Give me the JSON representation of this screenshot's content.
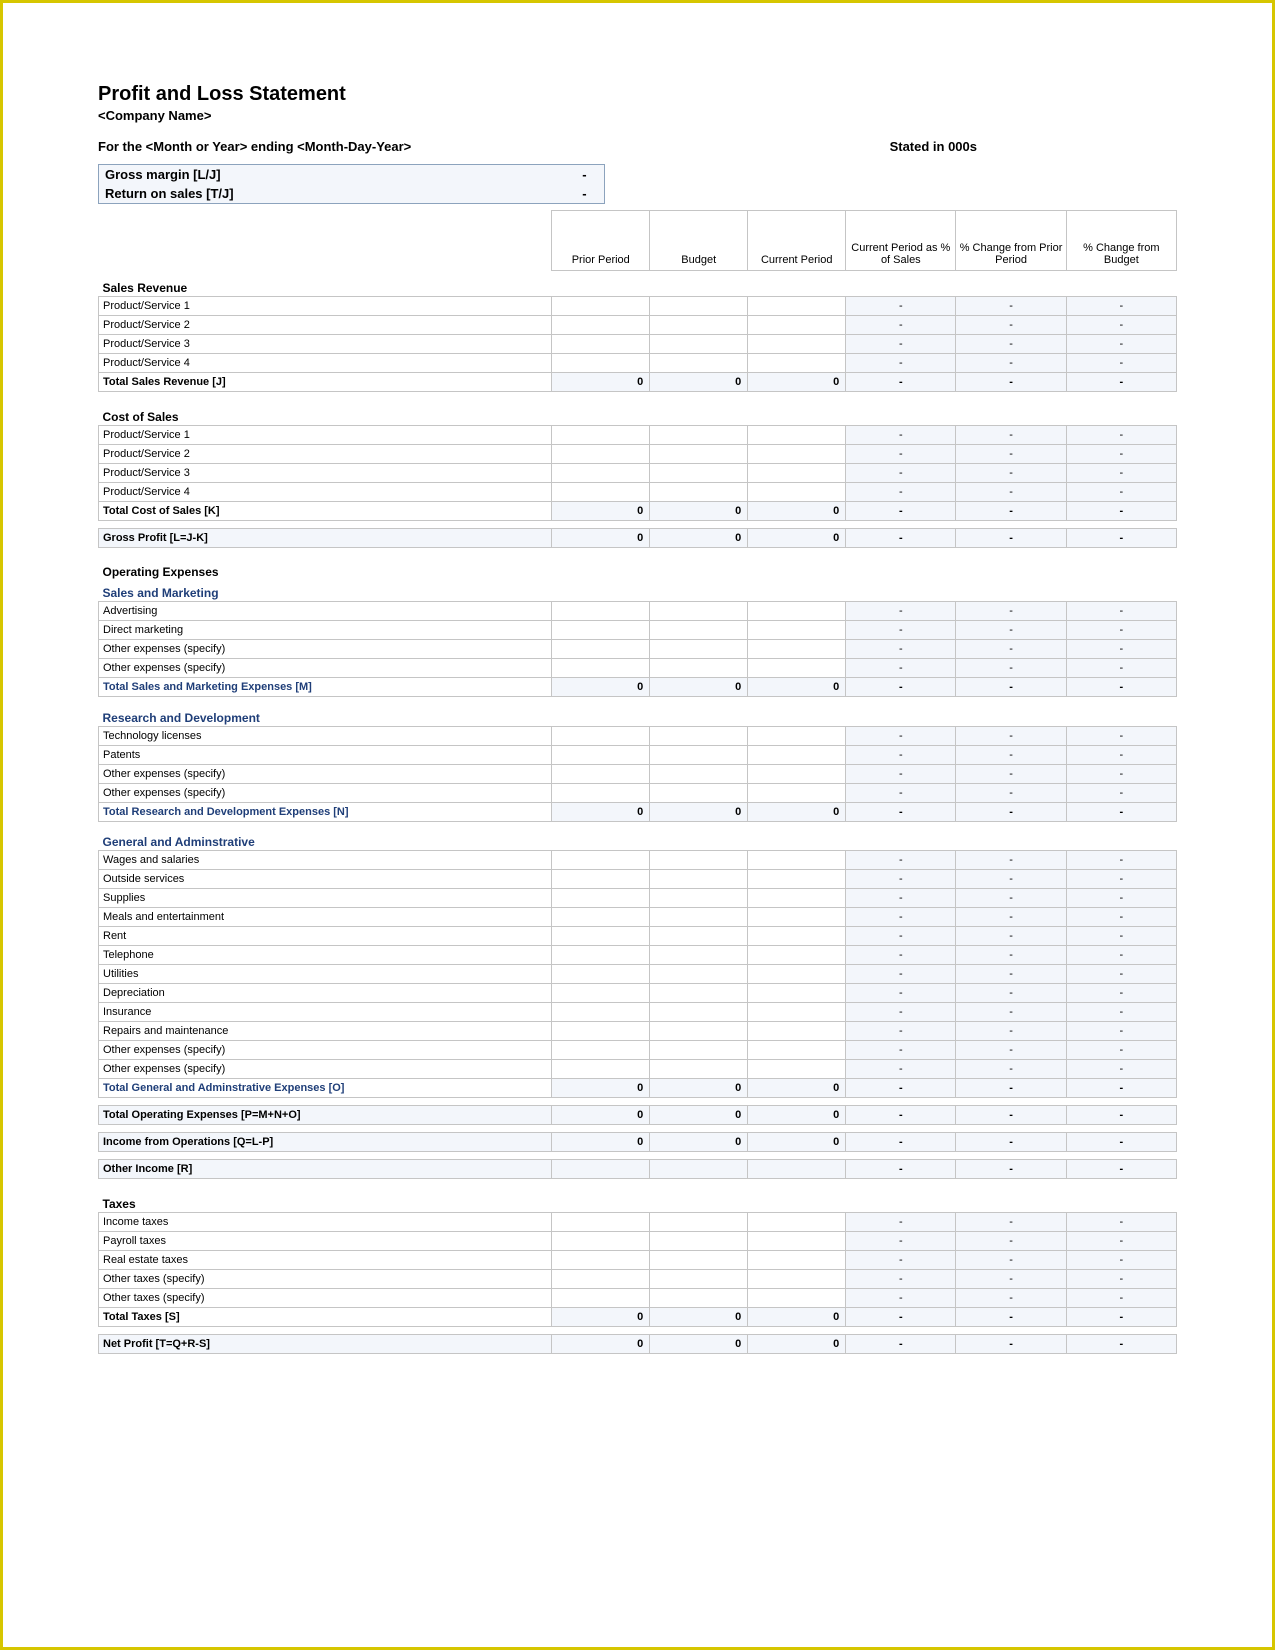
{
  "header": {
    "title": "Profit and Loss Statement",
    "company": "<Company Name>",
    "period_line": "For the <Month or Year> ending <Month-Day-Year>",
    "stated": "Stated in 000s"
  },
  "metrics": {
    "gross_margin_label": "Gross margin  [L/J]",
    "gross_margin_value": "-",
    "return_on_sales_label": "Return on sales  [T/J]",
    "return_on_sales_value": "-"
  },
  "columns": {
    "prior": "Prior Period",
    "budget": "Budget",
    "current": "Current Period",
    "pct_sales": "Current Period as % of Sales",
    "chg_prior": "% Change from Prior Period",
    "chg_budget": "% Change from Budget"
  },
  "colors": {
    "border": "#c5c5c5",
    "shade": "#f3f6fb",
    "blue_text": "#1f3e78",
    "page_border": "#d6c600"
  },
  "sections": [
    {
      "title": "Sales Revenue",
      "style": "section",
      "rows": [
        {
          "label": "Product/Service 1",
          "pct": [
            "-",
            "-",
            "-"
          ]
        },
        {
          "label": "Product/Service 2",
          "pct": [
            "-",
            "-",
            "-"
          ]
        },
        {
          "label": "Product/Service 3",
          "pct": [
            "-",
            "-",
            "-"
          ]
        },
        {
          "label": "Product/Service 4",
          "pct": [
            "-",
            "-",
            "-"
          ]
        }
      ],
      "total": {
        "label": "Total Sales Revenue  [J]",
        "nums": [
          "0",
          "0",
          "0"
        ],
        "pct": [
          "-",
          "-",
          "-"
        ],
        "style": "total"
      }
    },
    {
      "title": "Cost of Sales",
      "style": "section",
      "rows": [
        {
          "label": "Product/Service 1",
          "pct": [
            "-",
            "-",
            "-"
          ]
        },
        {
          "label": "Product/Service 2",
          "pct": [
            "-",
            "-",
            "-"
          ]
        },
        {
          "label": "Product/Service 3",
          "pct": [
            "-",
            "-",
            "-"
          ]
        },
        {
          "label": "Product/Service 4",
          "pct": [
            "-",
            "-",
            "-"
          ]
        }
      ],
      "total": {
        "label": "Total Cost of Sales  [K]",
        "nums": [
          "0",
          "0",
          "0"
        ],
        "pct": [
          "-",
          "-",
          "-"
        ],
        "style": "total"
      }
    }
  ],
  "gross_profit": {
    "label": "Gross Profit  [L=J-K]",
    "nums": [
      "0",
      "0",
      "0"
    ],
    "pct": [
      "-",
      "-",
      "-"
    ]
  },
  "opex_title": "Operating Expenses",
  "opex": [
    {
      "title": "Sales and Marketing",
      "style": "sub",
      "rows": [
        {
          "label": "Advertising",
          "pct": [
            "-",
            "-",
            "-"
          ]
        },
        {
          "label": "Direct marketing",
          "pct": [
            "-",
            "-",
            "-"
          ]
        },
        {
          "label": "Other expenses (specify)",
          "pct": [
            "-",
            "-",
            "-"
          ]
        },
        {
          "label": "Other expenses (specify)",
          "pct": [
            "-",
            "-",
            "-"
          ]
        }
      ],
      "total": {
        "label": "Total Sales and Marketing Expenses  [M]",
        "nums": [
          "0",
          "0",
          "0"
        ],
        "pct": [
          "-",
          "-",
          "-"
        ],
        "style": "total-blue"
      }
    },
    {
      "title": "Research and Development",
      "style": "sub",
      "rows": [
        {
          "label": "Technology licenses",
          "pct": [
            "-",
            "-",
            "-"
          ]
        },
        {
          "label": "Patents",
          "pct": [
            "-",
            "-",
            "-"
          ]
        },
        {
          "label": "Other expenses (specify)",
          "pct": [
            "-",
            "-",
            "-"
          ]
        },
        {
          "label": "Other expenses (specify)",
          "pct": [
            "-",
            "-",
            "-"
          ]
        }
      ],
      "total": {
        "label": "Total Research and Development Expenses  [N]",
        "nums": [
          "0",
          "0",
          "0"
        ],
        "pct": [
          "-",
          "-",
          "-"
        ],
        "style": "total-blue"
      }
    },
    {
      "title": "General and Adminstrative",
      "style": "sub",
      "rows": [
        {
          "label": "Wages and salaries",
          "pct": [
            "-",
            "-",
            "-"
          ]
        },
        {
          "label": "Outside services",
          "pct": [
            "-",
            "-",
            "-"
          ]
        },
        {
          "label": "Supplies",
          "pct": [
            "-",
            "-",
            "-"
          ]
        },
        {
          "label": "Meals and entertainment",
          "pct": [
            "-",
            "-",
            "-"
          ]
        },
        {
          "label": "Rent",
          "pct": [
            "-",
            "-",
            "-"
          ]
        },
        {
          "label": "Telephone",
          "pct": [
            "-",
            "-",
            "-"
          ]
        },
        {
          "label": "Utilities",
          "pct": [
            "-",
            "-",
            "-"
          ]
        },
        {
          "label": "Depreciation",
          "pct": [
            "-",
            "-",
            "-"
          ]
        },
        {
          "label": "Insurance",
          "pct": [
            "-",
            "-",
            "-"
          ]
        },
        {
          "label": "Repairs and maintenance",
          "pct": [
            "-",
            "-",
            "-"
          ]
        },
        {
          "label": "Other expenses (specify)",
          "pct": [
            "-",
            "-",
            "-"
          ]
        },
        {
          "label": "Other expenses (specify)",
          "pct": [
            "-",
            "-",
            "-"
          ]
        }
      ],
      "total": {
        "label": "Total General and Adminstrative Expenses  [O]",
        "nums": [
          "0",
          "0",
          "0"
        ],
        "pct": [
          "-",
          "-",
          "-"
        ],
        "style": "total-blue"
      }
    }
  ],
  "total_opex": {
    "label": "Total Operating Expenses  [P=M+N+O]",
    "nums": [
      "0",
      "0",
      "0"
    ],
    "pct": [
      "-",
      "-",
      "-"
    ]
  },
  "income_ops": {
    "label": "Income from Operations  [Q=L-P]",
    "nums": [
      "0",
      "0",
      "0"
    ],
    "pct": [
      "-",
      "-",
      "-"
    ]
  },
  "other_income": {
    "label": "Other Income  [R]",
    "pct": [
      "-",
      "-",
      "-"
    ]
  },
  "taxes": {
    "title": "Taxes",
    "rows": [
      {
        "label": "Income taxes",
        "pct": [
          "-",
          "-",
          "-"
        ]
      },
      {
        "label": "Payroll taxes",
        "pct": [
          "-",
          "-",
          "-"
        ]
      },
      {
        "label": "Real estate taxes",
        "pct": [
          "-",
          "-",
          "-"
        ]
      },
      {
        "label": "Other taxes (specify)",
        "pct": [
          "-",
          "-",
          "-"
        ]
      },
      {
        "label": "Other taxes (specify)",
        "pct": [
          "-",
          "-",
          "-"
        ]
      }
    ],
    "total": {
      "label": "Total Taxes  [S]",
      "nums": [
        "0",
        "0",
        "0"
      ],
      "pct": [
        "-",
        "-",
        "-"
      ],
      "style": "total"
    }
  },
  "net_profit": {
    "label": "Net Profit  [T=Q+R-S]",
    "nums": [
      "0",
      "0",
      "0"
    ],
    "pct": [
      "-",
      "-",
      "-"
    ]
  }
}
